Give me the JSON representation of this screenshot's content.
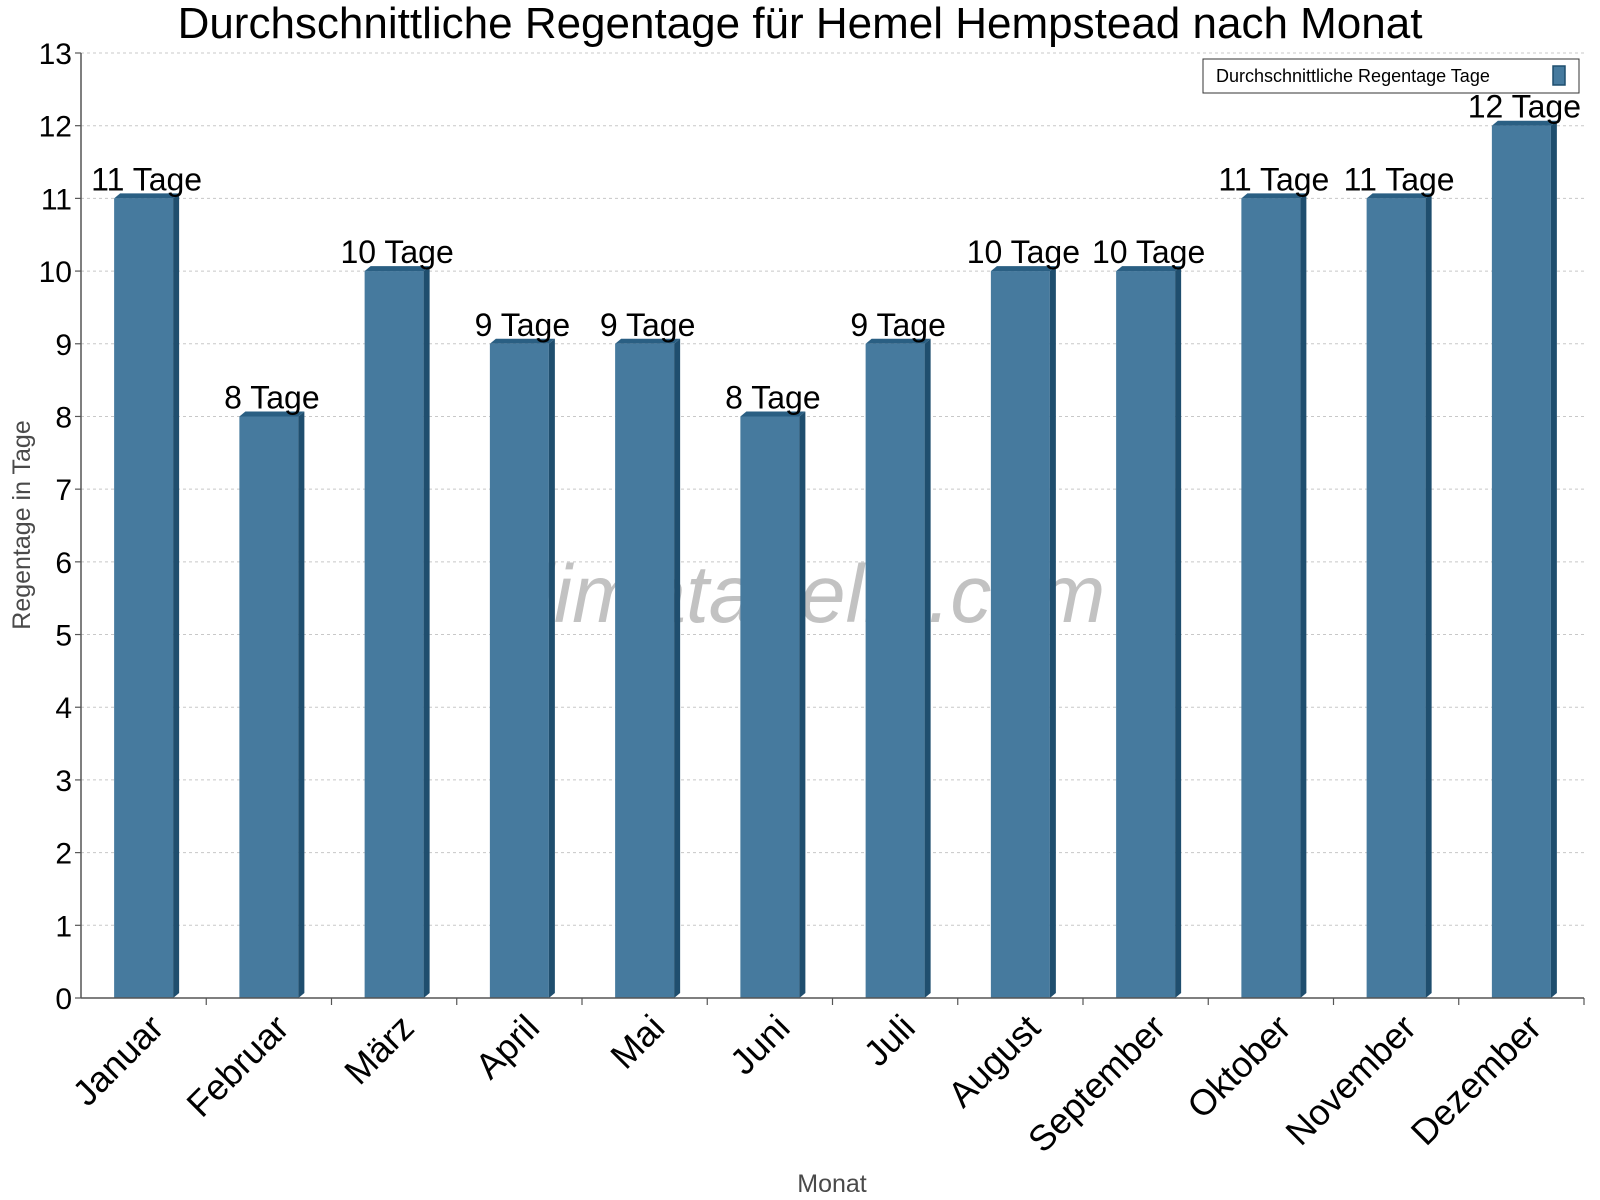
{
  "chart_data": {
    "type": "bar",
    "title": "Durchschnittliche Regentage für Hemel Hempstead nach Monat",
    "xlabel": "Monat",
    "ylabel": "Regentage in Tage",
    "ylim": [
      0,
      13
    ],
    "yticks": [
      "0",
      "1",
      "2",
      "3",
      "4",
      "5",
      "6",
      "7",
      "8",
      "9",
      "10",
      "11",
      "12",
      "13"
    ],
    "categories": [
      "Januar",
      "Februar",
      "März",
      "April",
      "Mai",
      "Juni",
      "Juli",
      "August",
      "September",
      "Oktober",
      "November",
      "Dezember"
    ],
    "series": [
      {
        "name": "Durchschnittliche Regentage Tage",
        "values": [
          11,
          8,
          10,
          9,
          9,
          8,
          9,
          10,
          10,
          11,
          11,
          12
        ],
        "labels": [
          "11 Tage",
          "8 Tage",
          "10 Tage",
          "9 Tage",
          "9 Tage",
          "8 Tage",
          "9 Tage",
          "10 Tage",
          "10 Tage",
          "11 Tage",
          "11 Tage",
          "12 Tage"
        ]
      }
    ],
    "grid": true,
    "legend_position": "top-right",
    "colors": {
      "bar": "#467a9e",
      "bar_side": "#1f4e6e",
      "bar_top": "#2a5f83"
    }
  },
  "watermark": "klimatabelle.com"
}
